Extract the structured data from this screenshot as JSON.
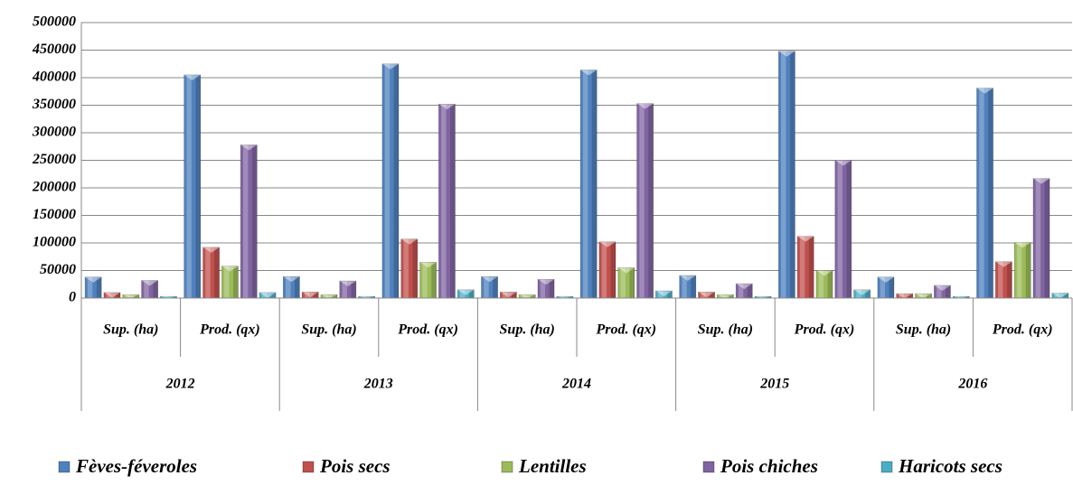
{
  "chart_data": {
    "type": "bar",
    "categories": [
      "Sup. (ha)",
      "Prod. (qx)",
      "Sup. (ha)",
      "Prod. (qx)",
      "Sup. (ha)",
      "Prod. (qx)",
      "Sup. (ha)",
      "Prod. (qx)",
      "Sup. (ha)",
      "Prod. (qx)"
    ],
    "groups": [
      "2012",
      "2013",
      "2014",
      "2015",
      "2016"
    ],
    "series": [
      {
        "name": "Fèves-féveroles",
        "color": "#4f81bd",
        "values": [
          38000,
          405000,
          39000,
          425000,
          39000,
          414000,
          41000,
          448000,
          38000,
          381000
        ]
      },
      {
        "name": "Pois secs",
        "color": "#c0504d",
        "values": [
          10000,
          92000,
          11000,
          107000,
          11000,
          102000,
          11000,
          112000,
          8000,
          66000
        ]
      },
      {
        "name": "Lentilles",
        "color": "#9bbb59",
        "values": [
          6000,
          58000,
          6000,
          65000,
          6000,
          55000,
          6000,
          50000,
          8000,
          101000
        ]
      },
      {
        "name": "Pois chiches",
        "color": "#8064a2",
        "values": [
          32000,
          278000,
          31000,
          352000,
          34000,
          353000,
          26000,
          250000,
          23000,
          217000
        ]
      },
      {
        "name": "Haricots secs",
        "color": "#4bacc6",
        "values": [
          3000,
          10000,
          3000,
          15000,
          3000,
          13000,
          3000,
          15000,
          3000,
          9000
        ]
      }
    ],
    "ylim": [
      0,
      500000
    ],
    "yticks": [
      0,
      50000,
      100000,
      150000,
      200000,
      250000,
      300000,
      350000,
      400000,
      450000,
      500000
    ],
    "grid": true
  }
}
